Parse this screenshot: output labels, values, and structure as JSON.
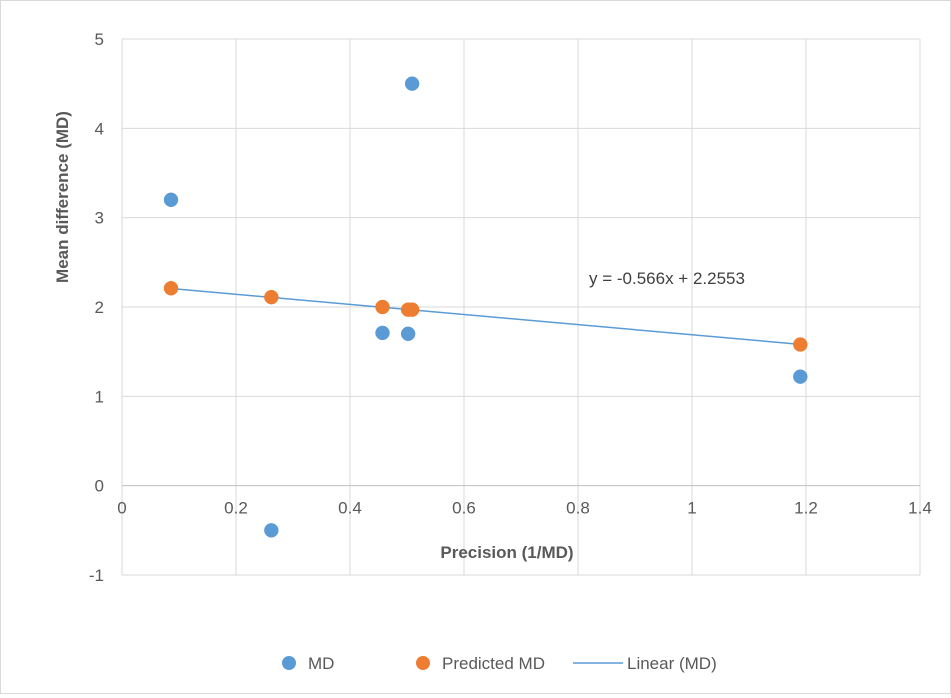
{
  "chart_data": {
    "type": "scatter",
    "xlabel": "Precision (1/MD)",
    "ylabel": "Mean difference (MD)",
    "xlim": [
      0,
      1.4
    ],
    "ylim": [
      -1,
      5
    ],
    "xticks": [
      "0",
      "0.2",
      "0.4",
      "0.6",
      "0.8",
      "1",
      "1.2",
      "1.4"
    ],
    "yticks": [
      "-1",
      "0",
      "1",
      "2",
      "3",
      "4",
      "5"
    ],
    "grid": true,
    "legend_position": "bottom",
    "series": [
      {
        "name": "MD",
        "color": "#5b9bd5",
        "points": [
          {
            "x": 0.086,
            "y": 3.2
          },
          {
            "x": 0.262,
            "y": -0.5
          },
          {
            "x": 0.457,
            "y": 1.71
          },
          {
            "x": 0.502,
            "y": 1.7
          },
          {
            "x": 0.509,
            "y": 4.5
          },
          {
            "x": 1.19,
            "y": 1.22
          }
        ]
      },
      {
        "name": "Predicted MD",
        "color": "#ed7d31",
        "points": [
          {
            "x": 0.086,
            "y": 2.21
          },
          {
            "x": 0.262,
            "y": 2.11
          },
          {
            "x": 0.457,
            "y": 2.0
          },
          {
            "x": 0.502,
            "y": 1.97
          },
          {
            "x": 0.509,
            "y": 1.97
          },
          {
            "x": 1.19,
            "y": 1.58
          }
        ]
      }
    ],
    "trendline": {
      "name": "Linear (MD)",
      "color": "#5b9bd5",
      "slope": -0.566,
      "intercept": 2.2553,
      "x_range": [
        0.086,
        1.19
      ],
      "equation_label": "y = -0.566x + 2.2553"
    }
  }
}
